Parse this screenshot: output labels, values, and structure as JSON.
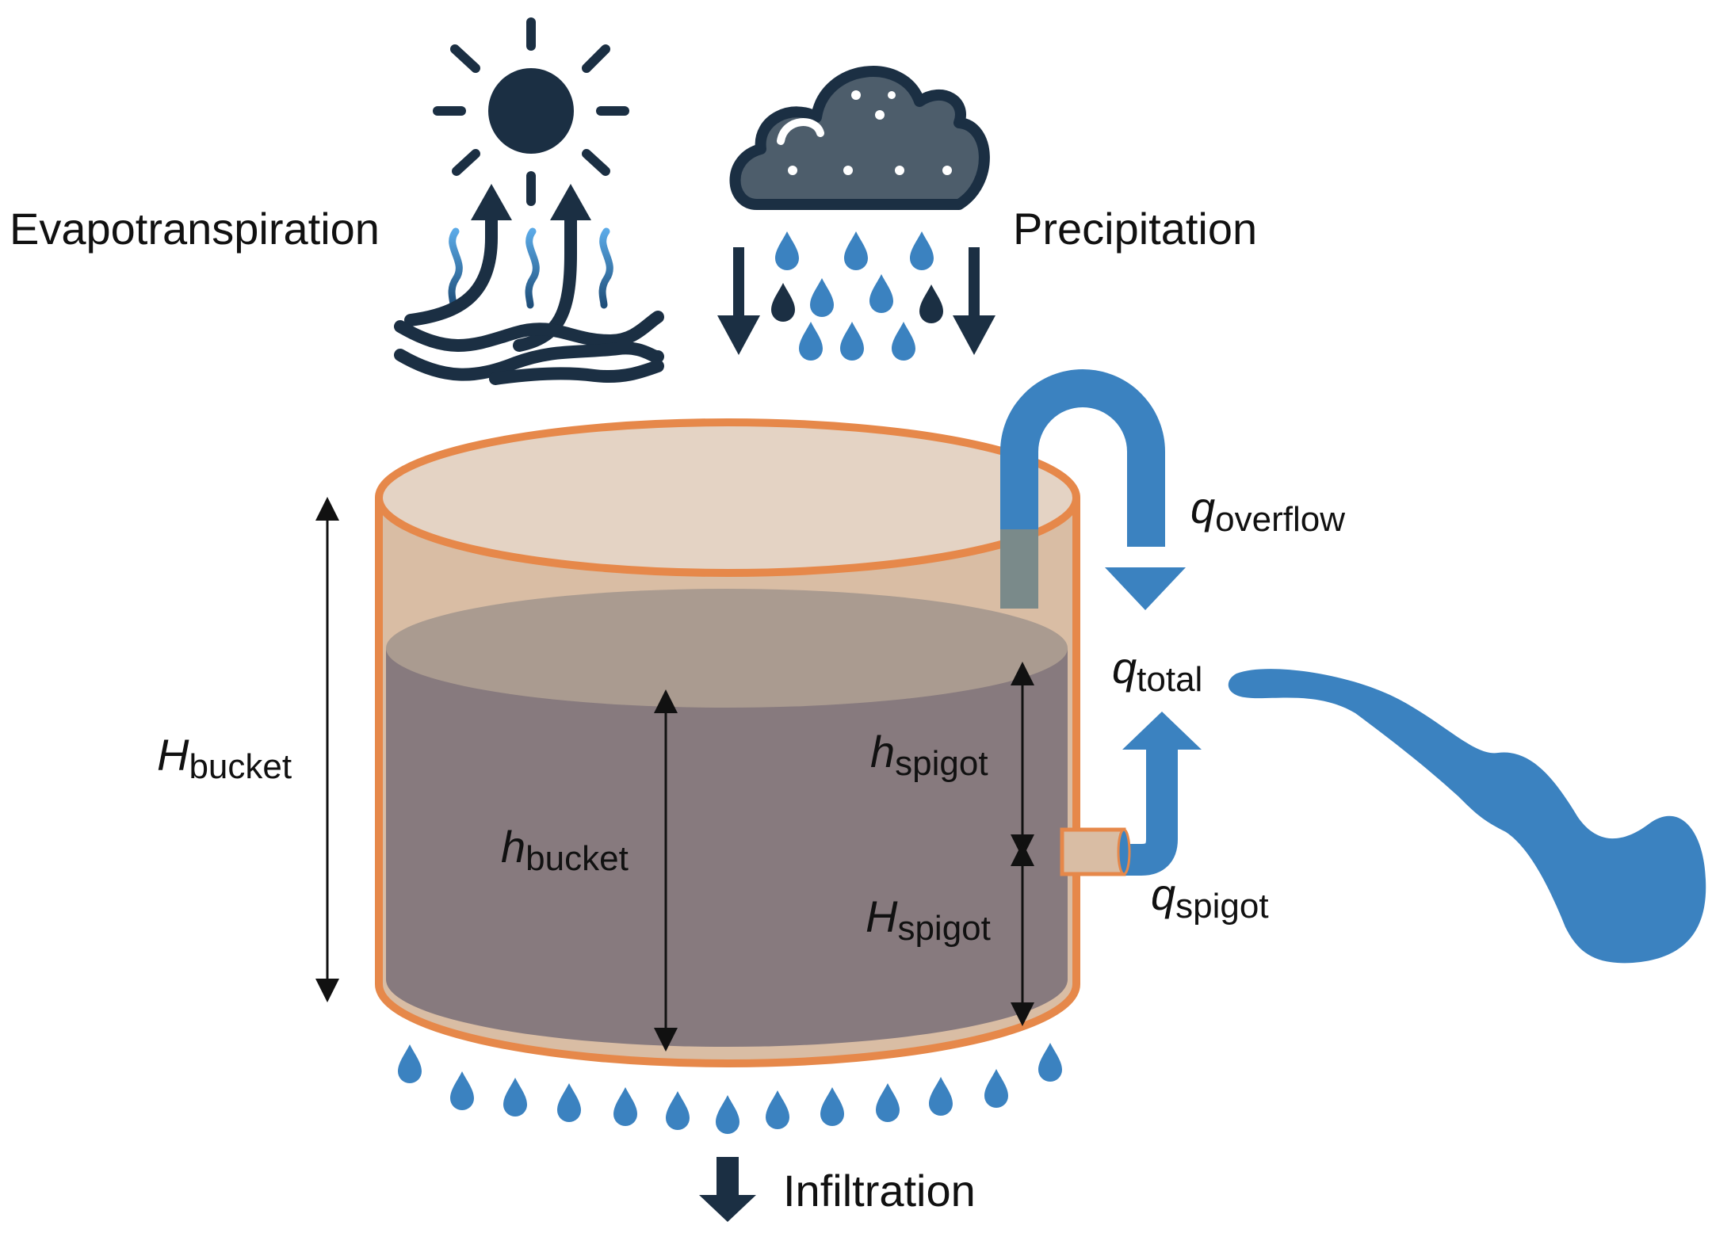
{
  "labels": {
    "evapotranspiration": "Evapotranspiration",
    "precipitation": "Precipitation",
    "infiltration": "Infiltration"
  },
  "symbols": {
    "q_overflow": {
      "main": "q",
      "sub": "overflow"
    },
    "q_total": {
      "main": "q",
      "sub": "total"
    },
    "q_spigot": {
      "main": "q",
      "sub": "spigot"
    },
    "H_bucket": {
      "main": "H",
      "sub": "bucket"
    },
    "h_bucket": {
      "main": "h",
      "sub": "bucket"
    },
    "h_spigot": {
      "main": "h",
      "sub": "spigot"
    },
    "H_spigot": {
      "main": "H",
      "sub": "spigot"
    }
  },
  "colors": {
    "dark_navy": "#1b2f43",
    "water_blue": "#3b82c0",
    "bucket_outline": "#e6884a",
    "bucket_fill": "#d9bda4",
    "water_fill": "#877a7e",
    "water_top": "#aa9b90",
    "cloud_fill": "#4d5d6b"
  }
}
